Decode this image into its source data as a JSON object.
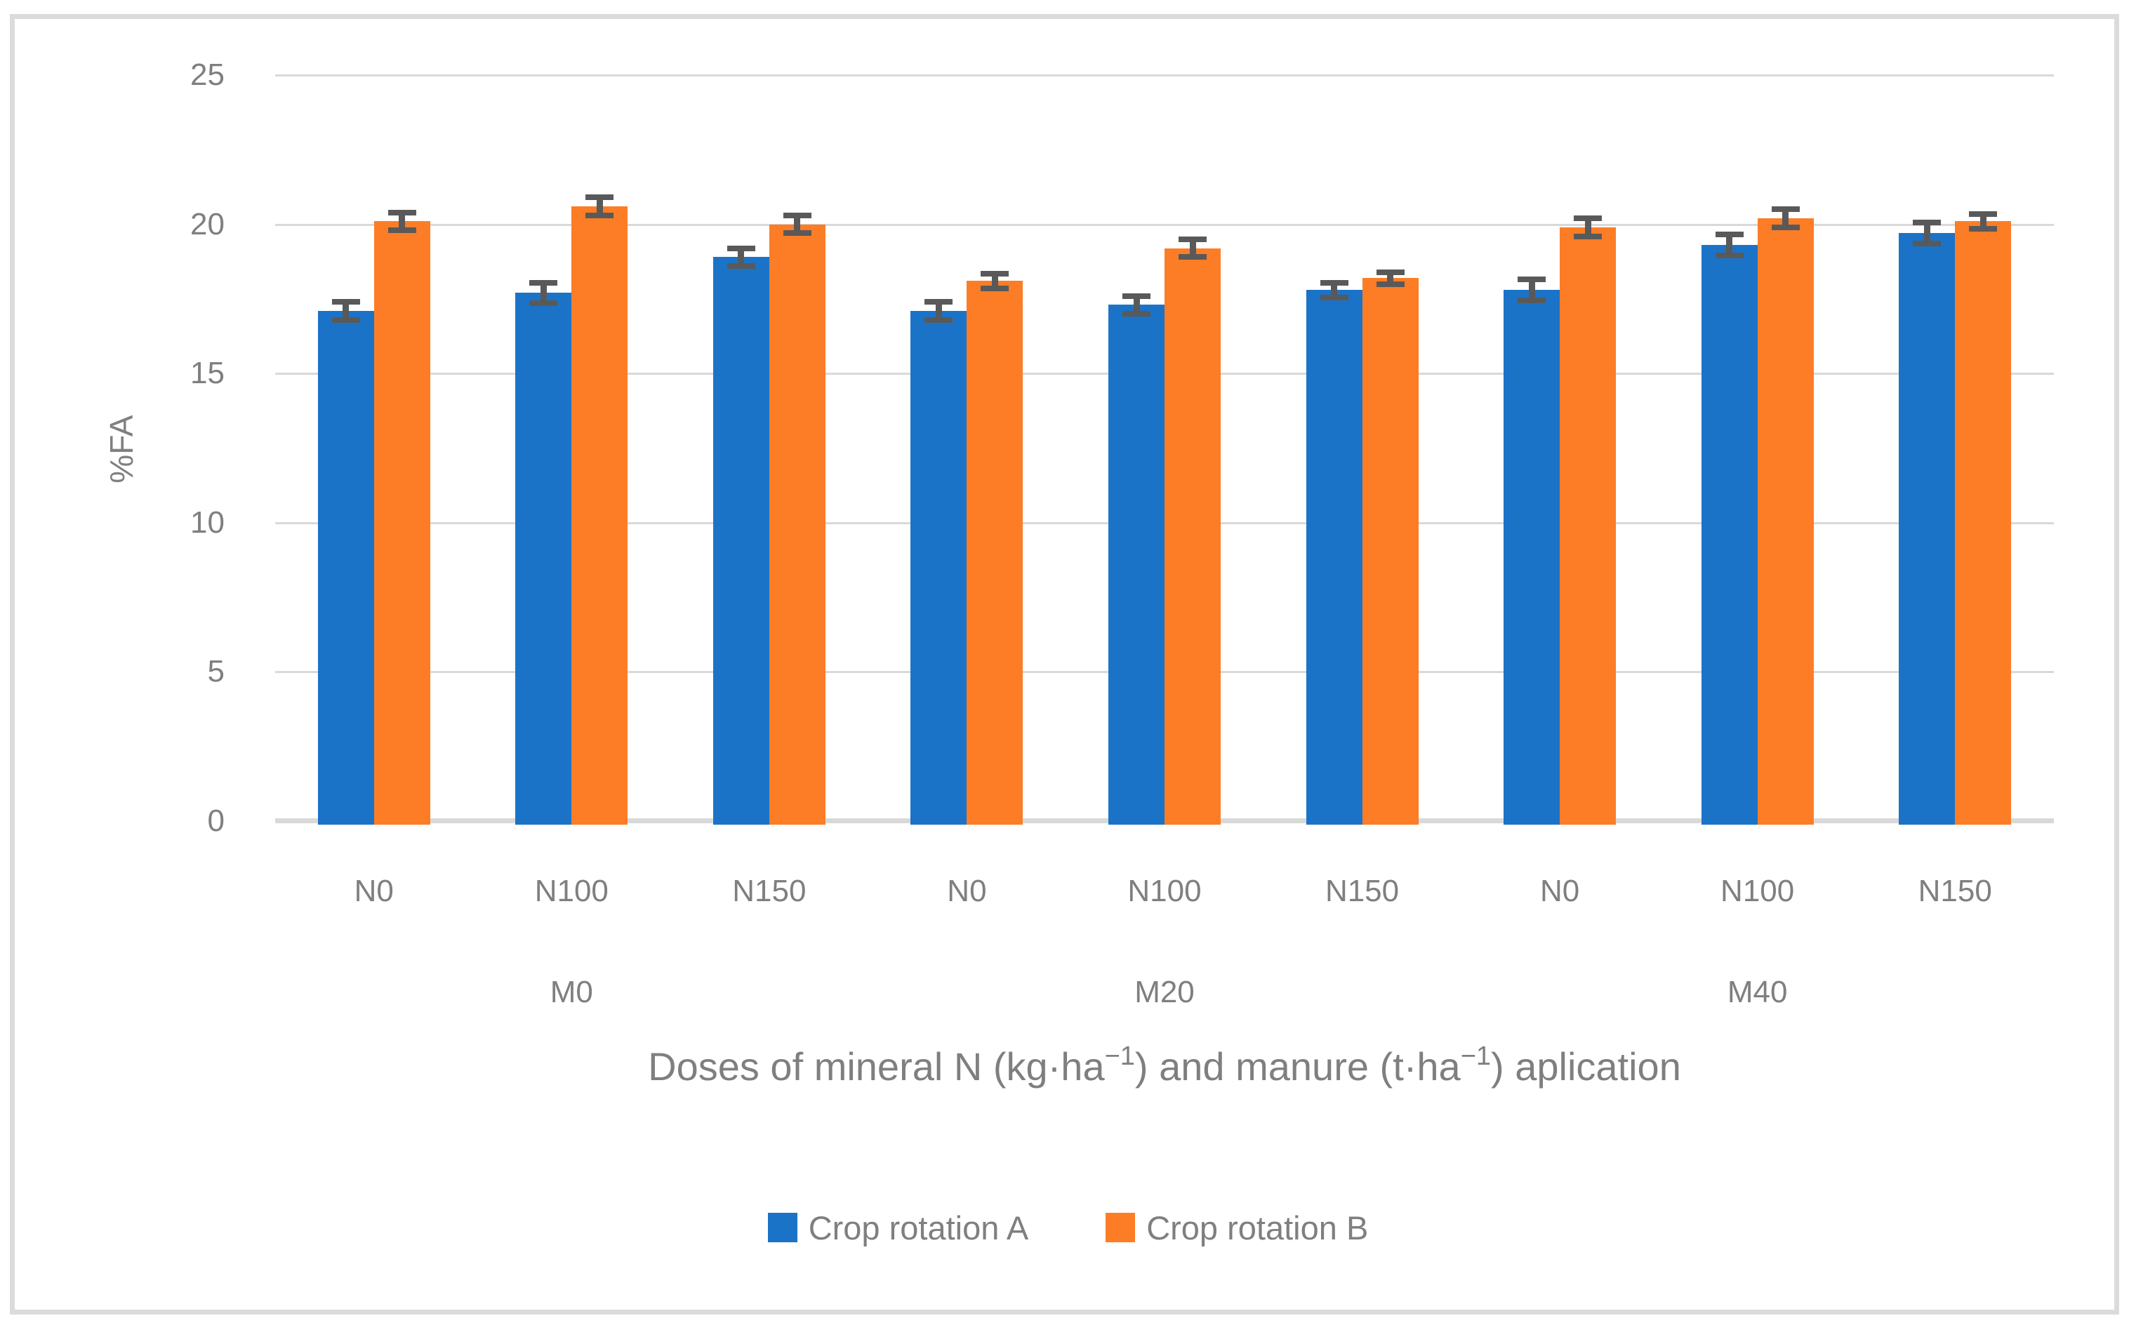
{
  "chart_data": {
    "type": "bar",
    "title": "",
    "ylabel": "%FA",
    "xlabel_parts": {
      "p1": "Doses of  mineral N (kg·ha",
      "sup1": "−1",
      "p2": ") and manure (t·ha",
      "sup2": "−1",
      "p3": ") aplication"
    },
    "ylim": [
      0,
      25
    ],
    "yticks": [
      0,
      5,
      10,
      15,
      20,
      25
    ],
    "grid": true,
    "legend_position": "bottom",
    "group_labels": [
      "M0",
      "M20",
      "M40"
    ],
    "categories": [
      "N0",
      "N100",
      "N150",
      "N0",
      "N100",
      "N150",
      "N0",
      "N100",
      "N150"
    ],
    "series": [
      {
        "name": "Crop rotation A",
        "color": "#1B73C8",
        "values": [
          17.1,
          17.7,
          18.9,
          17.1,
          17.3,
          17.8,
          17.8,
          19.3,
          19.7
        ],
        "errors": [
          0.3,
          0.35,
          0.3,
          0.3,
          0.3,
          0.25,
          0.35,
          0.35,
          0.35
        ]
      },
      {
        "name": "Crop rotation B",
        "color": "#FC7D26",
        "values": [
          20.1,
          20.6,
          20.0,
          18.1,
          19.2,
          18.2,
          19.9,
          20.2,
          20.1
        ],
        "errors": [
          0.3,
          0.3,
          0.3,
          0.25,
          0.3,
          0.2,
          0.3,
          0.3,
          0.25
        ]
      }
    ],
    "colors": {
      "gridline": "#D9D9D9",
      "frame": "#DBDBDB",
      "error_bar": "#595959",
      "text": "#7F7F7F"
    }
  }
}
